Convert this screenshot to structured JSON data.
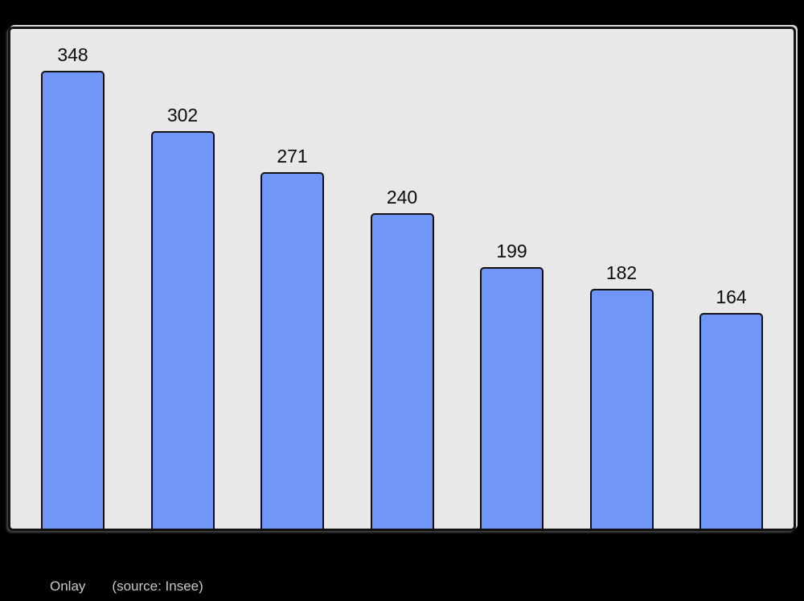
{
  "page": {
    "background_color": "#000000"
  },
  "chart_data": {
    "type": "bar",
    "values": [
      348,
      302,
      271,
      240,
      199,
      182,
      164
    ],
    "value_labels_shown": true,
    "categories": [],
    "title": "",
    "xlabel": "",
    "ylabel": "",
    "ylim": [
      0,
      380
    ],
    "grid": false,
    "legend": false,
    "bar_color": "#7096f8",
    "bar_border_color": "#111111",
    "panel_background": "#e8e8e8",
    "label_color": "#0a0a0a"
  },
  "caption": {
    "title": "Onlay",
    "source": "(source: Insee)"
  }
}
